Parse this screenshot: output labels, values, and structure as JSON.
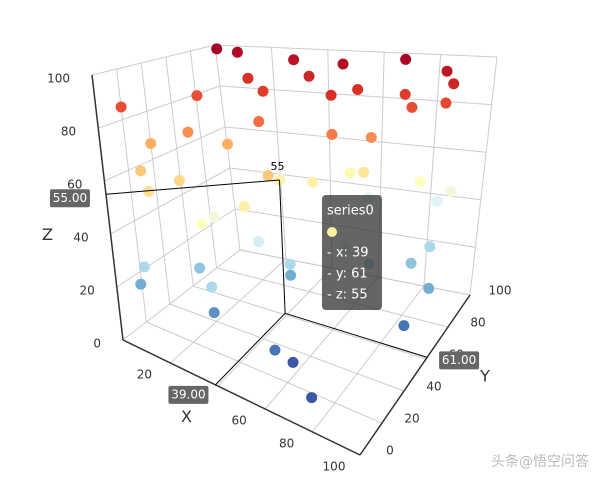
{
  "chart_data": {
    "type": "scatter3d",
    "series": [
      {
        "name": "series0",
        "x": [
          0,
          5,
          10,
          30,
          50,
          70,
          85,
          90,
          20,
          40,
          60,
          75,
          80,
          90,
          10,
          30,
          55,
          15,
          5,
          25,
          60,
          70,
          35,
          45,
          20,
          10,
          50,
          65,
          40,
          30,
          15,
          39,
          80,
          55,
          25,
          85,
          90,
          70,
          60,
          20,
          35,
          75,
          50,
          10,
          45,
          85,
          40,
          90,
          5,
          55,
          60,
          75,
          90,
          95,
          30
        ],
        "y": [
          20,
          90,
          95,
          95,
          90,
          95,
          95,
          90,
          80,
          85,
          80,
          85,
          80,
          85,
          60,
          70,
          70,
          40,
          30,
          50,
          60,
          70,
          55,
          40,
          20,
          10,
          65,
          75,
          30,
          15,
          5,
          61,
          90,
          85,
          35,
          95,
          95,
          50,
          90,
          30,
          10,
          60,
          45,
          5,
          55,
          75,
          40,
          80,
          10,
          20,
          25,
          10,
          60,
          70,
          20
        ],
        "z": [
          85,
          100,
          98,
          96,
          97,
          99,
          95,
          92,
          90,
          92,
          90,
          88,
          85,
          86,
          85,
          88,
          90,
          75,
          70,
          70,
          78,
          75,
          80,
          65,
          62,
          65,
          55,
          58,
          55,
          50,
          60,
          55,
          50,
          52,
          45,
          40,
          45,
          40,
          40,
          25,
          30,
          30,
          30,
          30,
          20,
          25,
          38,
          30,
          20,
          10,
          5,
          5,
          10,
          20,
          15
        ]
      }
    ],
    "xlim": [
      0,
      100
    ],
    "ylim": [
      0,
      100
    ],
    "zlim": [
      0,
      100
    ],
    "xticks": [
      20,
      40,
      60,
      80,
      100
    ],
    "yticks": [
      0,
      20,
      40,
      60,
      80,
      100
    ],
    "zticks": [
      0,
      20,
      40,
      60,
      80,
      100
    ],
    "x_label": "X",
    "y_label": "Y",
    "z_label": "Z",
    "grid": true,
    "visual_map": {
      "range": [
        0,
        100
      ],
      "colors": [
        "#313695",
        "#4575b4",
        "#74add1",
        "#abd9e9",
        "#e0f3f8",
        "#ffffbf",
        "#fee090",
        "#fdae61",
        "#f46d43",
        "#d73027",
        "#a50026"
      ]
    },
    "highlight": {
      "index": 31,
      "label": "55"
    },
    "tooltip": {
      "title": "series0",
      "lines": [
        "- x: 39",
        "- y: 61",
        "- z: 55"
      ]
    },
    "axis_pointer": {
      "x": "39.00",
      "y": "61.00",
      "z": "55.00"
    }
  },
  "watermark": "头条@悟空问答"
}
